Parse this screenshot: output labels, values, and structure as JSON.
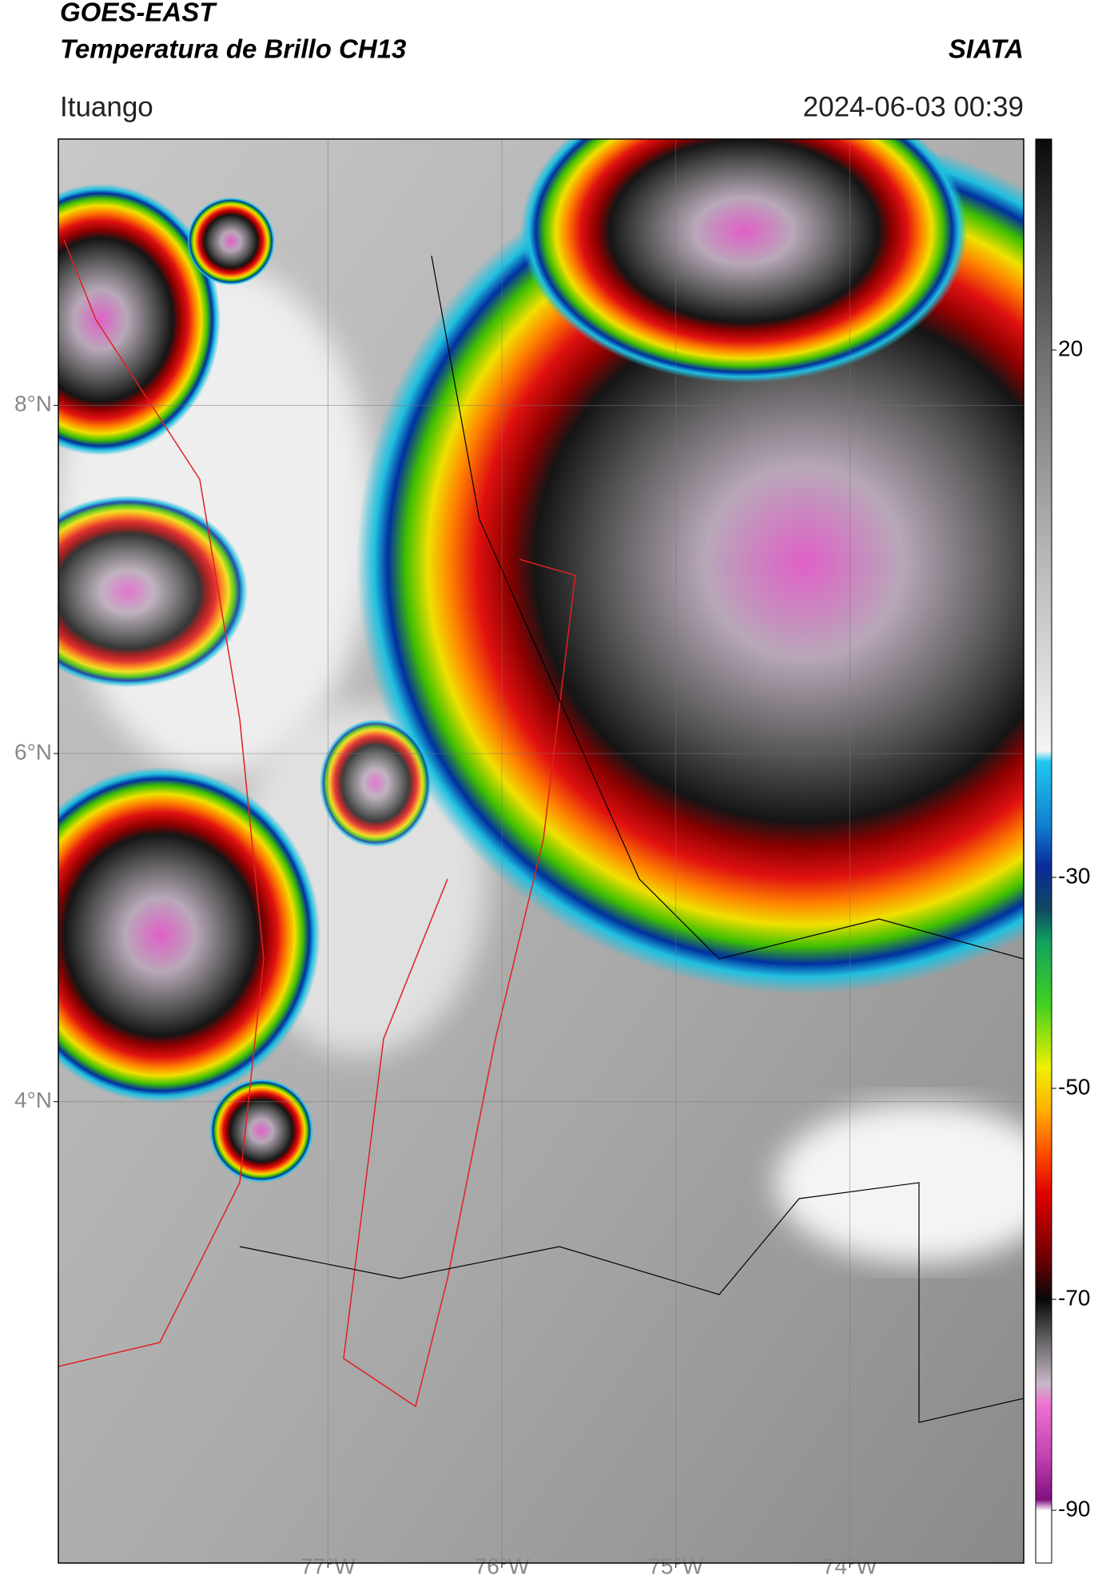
{
  "header": {
    "title": "GOES-EAST",
    "subtitle": "Temperatura de Brillo CH13",
    "source": "SIATA",
    "location": "Ituango",
    "datetime": "2024-06-03 00:39"
  },
  "map": {
    "xlim": [
      -78.55,
      -73.0
    ],
    "ylim": [
      1.35,
      9.53
    ],
    "grid": true,
    "xticks": [
      {
        "value": -77,
        "label": "77°W"
      },
      {
        "value": -76,
        "label": "76°W"
      },
      {
        "value": -75,
        "label": "75°W"
      },
      {
        "value": -74,
        "label": "74°W"
      }
    ],
    "yticks": [
      {
        "value": 8,
        "label": "8°N"
      },
      {
        "value": 6,
        "label": "6°N"
      },
      {
        "value": 4,
        "label": "4°N"
      }
    ]
  },
  "colorbar": {
    "lim": [
      -95,
      40
    ],
    "ticks": [
      20,
      -30,
      -50,
      -70,
      -90
    ],
    "stops": [
      {
        "value": 40,
        "color": "#0a0a0a"
      },
      {
        "value": 20,
        "color": "#6e6e6e"
      },
      {
        "value": 0,
        "color": "#b8b8b8"
      },
      {
        "value": -18,
        "color": "#f4f4f4"
      },
      {
        "value": -19,
        "color": "#20c8f0"
      },
      {
        "value": -25,
        "color": "#1080d0"
      },
      {
        "value": -29,
        "color": "#0a2a9a"
      },
      {
        "value": -33,
        "color": "#104860"
      },
      {
        "value": -36,
        "color": "#10a060"
      },
      {
        "value": -42,
        "color": "#40d020"
      },
      {
        "value": -48,
        "color": "#f0f000"
      },
      {
        "value": -52,
        "color": "#ffb000"
      },
      {
        "value": -56,
        "color": "#ff5000"
      },
      {
        "value": -60,
        "color": "#e00000"
      },
      {
        "value": -66,
        "color": "#700000"
      },
      {
        "value": -70,
        "color": "#080808"
      },
      {
        "value": -73,
        "color": "#505050"
      },
      {
        "value": -78,
        "color": "#c8b8c8"
      },
      {
        "value": -80,
        "color": "#f070d0"
      },
      {
        "value": -85,
        "color": "#c040b0"
      },
      {
        "value": -89,
        "color": "#801080"
      },
      {
        "value": -90,
        "color": "#ffffff"
      },
      {
        "value": -95,
        "color": "#ffffff"
      }
    ]
  }
}
